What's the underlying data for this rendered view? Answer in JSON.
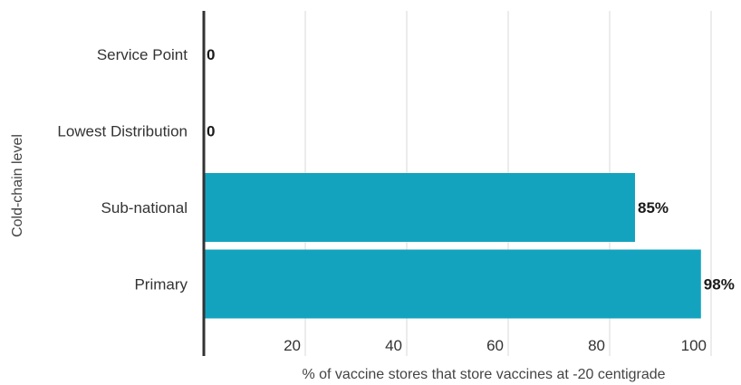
{
  "chart_data": {
    "type": "bar",
    "orientation": "horizontal",
    "title": "",
    "xlabel": "% of vaccine stores that store vaccines at -20 centigrade",
    "ylabel": "Cold-chain level",
    "categories": [
      "Service Point",
      "Lowest Distribution",
      "Sub-national",
      "Primary"
    ],
    "values": [
      0,
      0,
      85,
      98
    ],
    "data_labels": [
      "0",
      "0",
      "85%",
      "98%"
    ],
    "xlim": [
      0,
      100
    ],
    "xticks": [
      20,
      40,
      60,
      80,
      100
    ],
    "grid": true,
    "legend": "none",
    "bar_color": "#14a3bf",
    "axis_color": "#333333",
    "grid_color": "#d9d9d9"
  }
}
